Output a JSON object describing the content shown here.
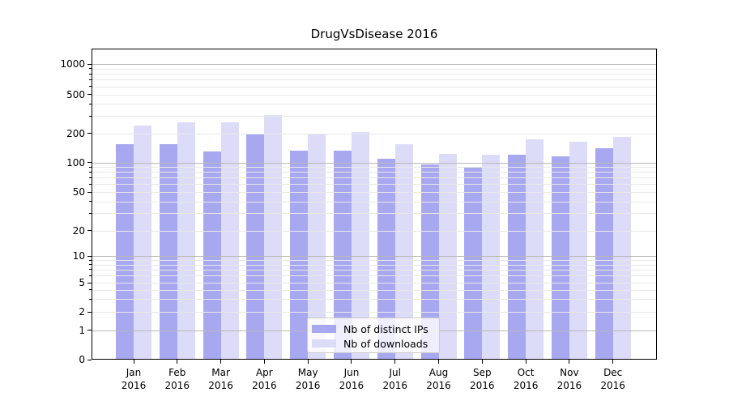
{
  "chart_data": {
    "type": "bar",
    "title": "DrugVsDisease 2016",
    "categories": [
      "Jan",
      "Feb",
      "Mar",
      "Apr",
      "May",
      "Jun",
      "Jul",
      "Aug",
      "Sep",
      "Oct",
      "Nov",
      "Dec"
    ],
    "category_year": "2016",
    "series": [
      {
        "name": "Nb of distinct IPs",
        "color": "#a8a8f1",
        "values": [
          153,
          155,
          130,
          200,
          133,
          133,
          110,
          96,
          90,
          119,
          115,
          139
        ]
      },
      {
        "name": "Nb of downloads",
        "color": "#dcdcf9",
        "values": [
          242,
          261,
          261,
          310,
          198,
          207,
          153,
          122,
          121,
          173,
          163,
          184
        ]
      }
    ],
    "xlabel": "",
    "ylabel": "",
    "y_axis": {
      "scale": "symlog",
      "tick_values": [
        0,
        1,
        2,
        5,
        10,
        20,
        50,
        100,
        200,
        500,
        1000
      ],
      "tick_labels": [
        "0",
        "1",
        "2",
        "5",
        "10",
        "20",
        "50",
        "100",
        "200",
        "500",
        "1000"
      ],
      "range_top": 1400
    },
    "legend": {
      "position": "lower center",
      "entries": [
        "Nb of distinct IPs",
        "Nb of downloads"
      ]
    },
    "grid": true
  },
  "colors": {
    "bar_distinct_ips": "#a8a8f1",
    "bar_downloads": "#dcdcf9",
    "major_grid": "#b8b8b8",
    "minor_grid": "#e8e8e8",
    "axis": "#000000",
    "background": "#ffffff"
  }
}
